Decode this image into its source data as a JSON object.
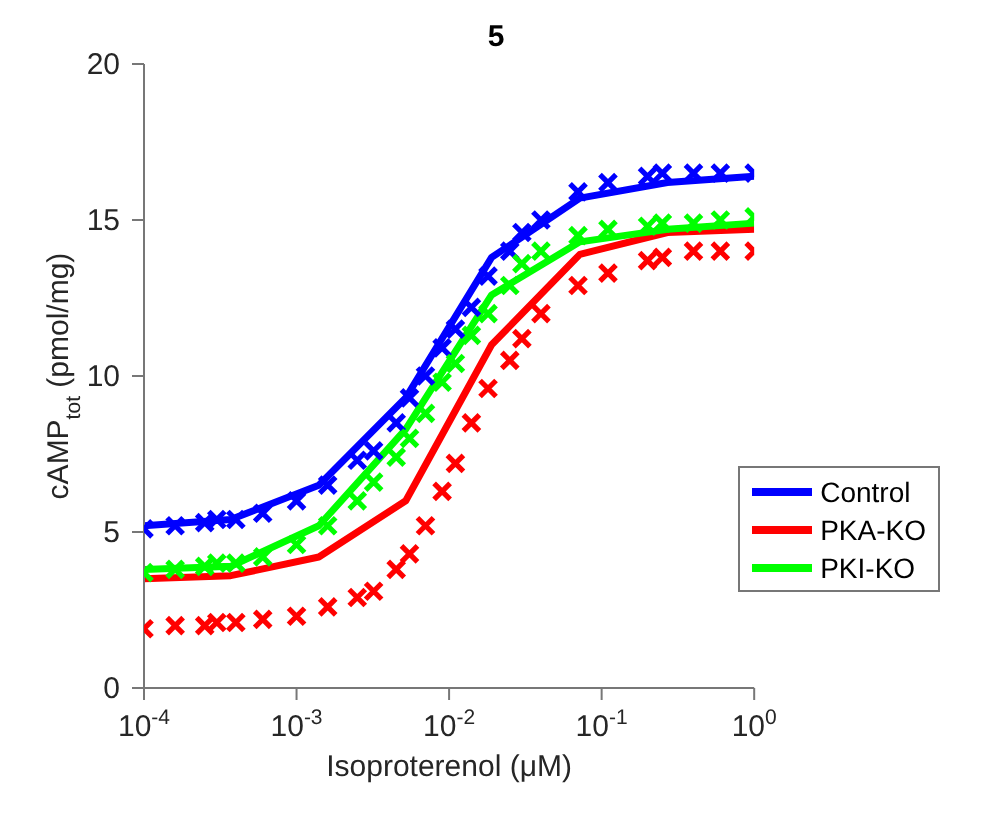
{
  "chart_data": {
    "type": "line",
    "title": "5",
    "xlabel": "Isoproterenol (μM)",
    "ylabel": "cAMP$_{tot}$ (pmol/mg)",
    "log": "x",
    "xlim": [
      0.0001,
      1
    ],
    "xticks": [
      {
        "value": 0.0001,
        "label": "10$^{-4}$"
      },
      {
        "value": 0.001,
        "label": "10$^{-3}$"
      },
      {
        "value": 0.01,
        "label": "10$^{-2}$"
      },
      {
        "value": 0.1,
        "label": "10$^{-1}$"
      },
      {
        "value": 1,
        "label": "10$^{0}$"
      }
    ],
    "ylim": [
      0,
      20
    ],
    "yticks": [
      0,
      5,
      10,
      15,
      20
    ],
    "grid": false,
    "legend": "right",
    "series": [
      {
        "name": "Control",
        "color": "#0000ff",
        "marker": "none",
        "line_style": "solid",
        "x": [
          0.0001,
          0.00037,
          0.0014,
          0.0052,
          0.019,
          0.072,
          0.27,
          1
        ],
        "values": [
          5.2,
          5.4,
          6.5,
          9.3,
          13.8,
          15.7,
          16.2,
          16.4
        ]
      },
      {
        "name": "PKA-KO",
        "color": "#ff0000",
        "marker": "none",
        "line_style": "solid",
        "x": [
          0.0001,
          0.00037,
          0.0014,
          0.0052,
          0.019,
          0.072,
          0.27,
          1
        ],
        "values": [
          3.5,
          3.6,
          4.2,
          6.0,
          11.0,
          13.9,
          14.6,
          14.7
        ]
      },
      {
        "name": "PKI-KO",
        "color": "#00ff00",
        "marker": "none",
        "line_style": "solid",
        "x": [
          0.0001,
          0.00037,
          0.0014,
          0.0052,
          0.019,
          0.072,
          0.27,
          1
        ],
        "values": [
          3.8,
          3.9,
          5.2,
          8.3,
          12.6,
          14.3,
          14.7,
          14.9
        ]
      },
      {
        "type": "scatter",
        "marker": "cross",
        "color": "#0000ff",
        "x": [
          0.0001,
          0.00016,
          0.00025,
          0.0003,
          0.0004,
          0.0006,
          0.001,
          0.0016,
          0.0025,
          0.0032,
          0.0045,
          0.0055,
          0.007,
          0.009,
          0.011,
          0.014,
          0.018,
          0.025,
          0.03,
          0.04,
          0.07,
          0.11,
          0.2,
          0.25,
          0.4,
          0.6,
          1
        ],
        "values": [
          5.1,
          5.2,
          5.3,
          5.4,
          5.4,
          5.6,
          6.0,
          6.5,
          7.3,
          7.6,
          8.5,
          9.3,
          10.0,
          10.9,
          11.5,
          12.2,
          13.2,
          14.0,
          14.6,
          15.0,
          15.9,
          16.2,
          16.4,
          16.5,
          16.5,
          16.5,
          16.5
        ]
      },
      {
        "type": "scatter",
        "marker": "cross",
        "color": "#ff0000",
        "x": [
          0.0001,
          0.00016,
          0.00025,
          0.0003,
          0.0004,
          0.0006,
          0.001,
          0.0016,
          0.0025,
          0.0032,
          0.0045,
          0.0055,
          0.007,
          0.009,
          0.011,
          0.014,
          0.018,
          0.025,
          0.03,
          0.04,
          0.07,
          0.11,
          0.2,
          0.25,
          0.4,
          0.6,
          1
        ],
        "values": [
          1.9,
          2.0,
          2.0,
          2.1,
          2.1,
          2.2,
          2.3,
          2.6,
          2.9,
          3.1,
          3.8,
          4.3,
          5.2,
          6.3,
          7.2,
          8.5,
          9.6,
          10.5,
          11.2,
          12.0,
          12.9,
          13.3,
          13.7,
          13.8,
          14.0,
          14.0,
          14.0
        ]
      },
      {
        "type": "scatter",
        "marker": "cross",
        "color": "#00ff00",
        "x": [
          0.0001,
          0.00016,
          0.00025,
          0.0003,
          0.0004,
          0.0006,
          0.001,
          0.0016,
          0.0025,
          0.0032,
          0.0045,
          0.0055,
          0.007,
          0.009,
          0.011,
          0.014,
          0.018,
          0.025,
          0.03,
          0.04,
          0.07,
          0.11,
          0.2,
          0.25,
          0.4,
          0.6,
          1
        ],
        "values": [
          3.7,
          3.8,
          3.9,
          4.0,
          4.0,
          4.2,
          4.6,
          5.2,
          6.0,
          6.6,
          7.4,
          8.0,
          8.8,
          9.8,
          10.4,
          11.3,
          12.0,
          12.9,
          13.6,
          14.0,
          14.5,
          14.7,
          14.8,
          14.9,
          14.9,
          15.0,
          15.1
        ]
      }
    ]
  }
}
